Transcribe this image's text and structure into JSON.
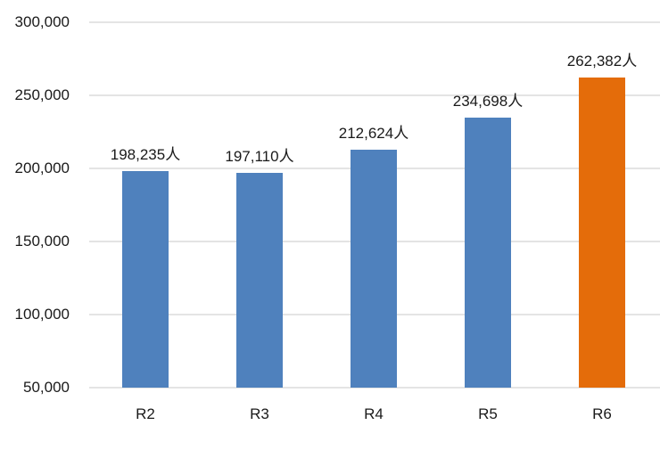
{
  "chart_data": {
    "type": "bar",
    "title": "",
    "xlabel": "",
    "ylabel": "",
    "categories": [
      "R2",
      "R3",
      "R4",
      "R5",
      "R6"
    ],
    "values": [
      198235,
      197110,
      212624,
      234698,
      262382
    ],
    "data_labels": [
      "198,235人",
      "197,110人",
      "212,624人",
      "234,698人",
      "262,382人"
    ],
    "unit": "人",
    "ylim": [
      50000,
      300000
    ],
    "yticks": [
      50000,
      100000,
      150000,
      200000,
      250000,
      300000
    ],
    "ytick_labels": [
      "50,000",
      "100,000",
      "150,000",
      "200,000",
      "250,000",
      "300,000"
    ],
    "grid": true,
    "legend": null,
    "colors": [
      "#4f81bd",
      "#4f81bd",
      "#4f81bd",
      "#4f81bd",
      "#e46c0a"
    ],
    "highlight_index": 4
  }
}
